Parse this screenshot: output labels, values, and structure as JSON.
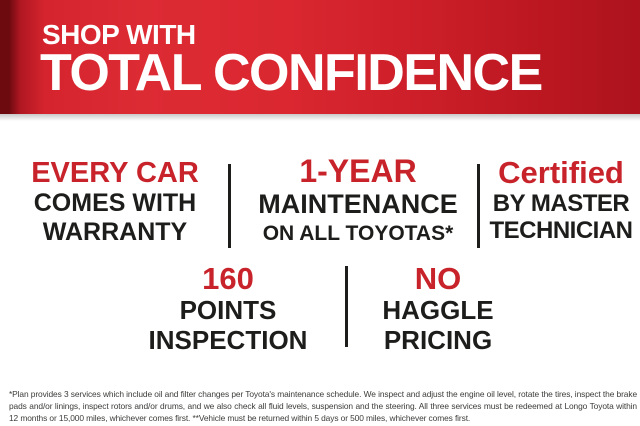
{
  "banner": {
    "line1": "SHOP WITH",
    "line2": "TOTAL CONFIDENCE"
  },
  "features": [
    {
      "id": "warranty",
      "highlight": "EVERY CAR",
      "lines": [
        "COMES WITH",
        "WARRANTY"
      ]
    },
    {
      "id": "maintenance",
      "highlight": "1-YEAR",
      "lines": [
        "MAINTENANCE",
        "ON ALL TOYOTAS*"
      ]
    },
    {
      "id": "certified",
      "highlight": "Certified",
      "lines": [
        "BY MASTER",
        "TECHNICIAN"
      ]
    },
    {
      "id": "inspection",
      "highlight": "160",
      "lines": [
        "POINTS",
        "INSPECTION"
      ]
    },
    {
      "id": "pricing",
      "highlight": "NO",
      "lines": [
        "HAGGLE",
        "PRICING"
      ]
    }
  ],
  "disclaimer": "*Plan provides 3 services which include oil and filter changes per Toyota's maintenance schedule. We inspect and adjust the engine oil level, rotate the tires, inspect the brake pads and/or linings, inspect rotors and/or drums, and we also check all fluid levels, suspension and the steering. All three services must be redeemed at Longo Toyota within 12 months or 15,000 miles, whichever comes first. **Vehicle must be returned within 5 days or 500 miles, whichever comes first.",
  "colors": {
    "banner_red": "#d5242e",
    "accent_red": "#c8232a",
    "text_black": "#1d1d1b"
  }
}
